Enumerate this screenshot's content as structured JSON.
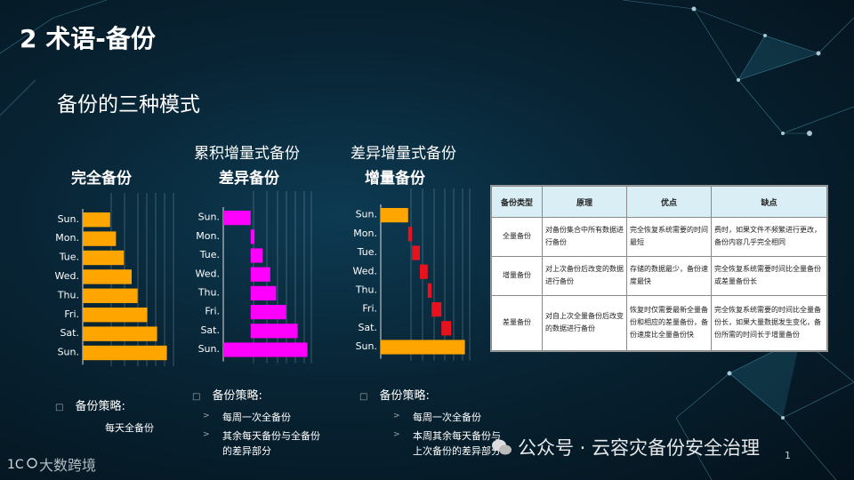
{
  "title": "2 术语-备份",
  "subtitle": "备份的三种模式",
  "days": [
    "Sun.",
    "Mon.",
    "Tue.",
    "Wed.",
    "Thu.",
    "Fri.",
    "Sat.",
    "Sun."
  ],
  "panels": [
    {
      "top_label": "",
      "heading": "完全备份",
      "color": "#FFA500",
      "bars": [
        1.4,
        1.7,
        2.1,
        2.5,
        2.8,
        3.3,
        3.8,
        4.3
      ],
      "strategy": "备份策略:",
      "items": [
        "每天全备份"
      ]
    },
    {
      "top_label": "累积增量式备份",
      "heading": "差异备份",
      "color": "#FF00FF",
      "bars": [
        1.4,
        0.2,
        0.6,
        1.0,
        1.3,
        1.8,
        2.4,
        4.3
      ],
      "strategy": "备份策略:",
      "items": [
        "每周一次全备份",
        "其余每天备份与全备份的差异部分"
      ]
    },
    {
      "top_label": "差异增量式备份",
      "heading": "增量备份",
      "color": "#FFA500",
      "bars": [
        1.4,
        0.2,
        0.4,
        0.4,
        0.2,
        0.5,
        0.5,
        4.3
      ],
      "strategy": "备份策略:",
      "items": [
        "每周一次全备份",
        "本周其余每天备份与上次备份的差异部分"
      ]
    }
  ],
  "table": {
    "headers": [
      "备份类型",
      "原理",
      "优点",
      "缺点"
    ],
    "rows": [
      [
        "全量备份",
        "对备份集合中所有数据进行备份",
        "完全恢复系统需要的时间最短",
        "费时，如果文件不频繁进行更改，备份内容几乎完全相同"
      ],
      [
        "增量备份",
        "对上次备份后改变的数据进行备份",
        "存储的数据最少，备份速度最快",
        "完全恢复系统需要时间比全量备份或差量备份长"
      ],
      [
        "差量备份",
        "对自上次全量备份后改变的数据进行备份",
        "恢复时仅需要最新全量备份和相应的差量备份，备份速度比全量备份快",
        "完全恢复系统需要的时间比全量备份长，如果大量数据发生变化，备份所需的时间长于增量备份"
      ]
    ]
  },
  "watermark": "公众号 · 云容灾备份安全治理",
  "logo_text": "大数跨境",
  "page_number": "1"
}
